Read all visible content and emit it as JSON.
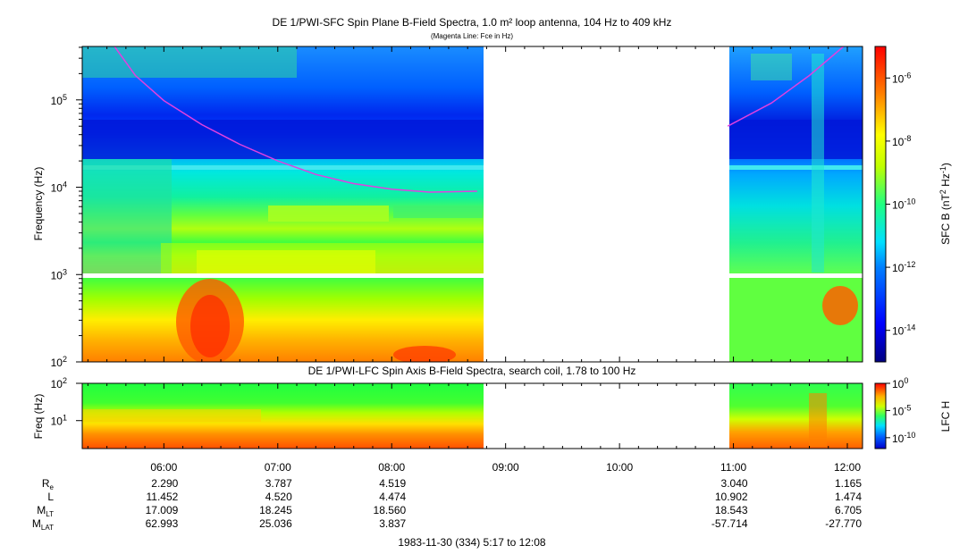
{
  "chart_data": [
    {
      "type": "heatmap",
      "title": "DE 1/PWI-SFC  Spin Plane B-Field Spectra, 1.0 m² loop antenna, 104 Hz to 409 kHz",
      "subtitle": "(Magenta Line: Fce in Hz)",
      "ylabel": "Frequency (Hz)",
      "yscale": "log",
      "ylim": [
        100,
        409000
      ],
      "yticks": [
        {
          "value": 100,
          "label": "10",
          "exp": "2"
        },
        {
          "value": 1000,
          "label": "10",
          "exp": "3"
        },
        {
          "value": 10000,
          "label": "10",
          "exp": "4"
        },
        {
          "value": 100000,
          "label": "10",
          "exp": "5"
        }
      ],
      "colorbar": {
        "label_pre": "SFC B (nT",
        "label_sup1": "2",
        "label_mid": " Hz",
        "label_sup2": "-1",
        "label_post": ")",
        "scale": "log",
        "range": [
          1e-15,
          1e-05
        ],
        "ticks": [
          {
            "value": 1e-06,
            "label": "10",
            "exp": "-6"
          },
          {
            "value": 1e-08,
            "label": "10",
            "exp": "-8"
          },
          {
            "value": 1e-10,
            "label": "10",
            "exp": "-10"
          },
          {
            "value": 1e-12,
            "label": "10",
            "exp": "-12"
          },
          {
            "value": 1e-14,
            "label": "10",
            "exp": "-14"
          }
        ]
      },
      "data_gaps_utc": [
        [
          "08:48",
          "10:55"
        ]
      ],
      "fce_line": {
        "name": "Fce",
        "color": "#e040e0",
        "points_hz": [
          {
            "t": "05:34",
            "f": 409000
          },
          {
            "t": "05:45",
            "f": 190000
          },
          {
            "t": "06:00",
            "f": 98000
          },
          {
            "t": "06:20",
            "f": 52000
          },
          {
            "t": "06:40",
            "f": 31000
          },
          {
            "t": "07:00",
            "f": 20000
          },
          {
            "t": "07:20",
            "f": 14000
          },
          {
            "t": "07:40",
            "f": 11000
          },
          {
            "t": "08:00",
            "f": 9500
          },
          {
            "t": "08:20",
            "f": 8800
          },
          {
            "t": "08:45",
            "f": 9000
          },
          {
            "t": "10:57",
            "f": 50000
          },
          {
            "t": "11:20",
            "f": 92000
          },
          {
            "t": "11:40",
            "f": 190000
          },
          {
            "t": "11:58",
            "f": 409000
          }
        ]
      }
    },
    {
      "type": "heatmap",
      "title": "DE 1/PWI-LFC  Spin Axis B-Field Spectra, search coil, 1.78 to 100 Hz",
      "ylabel": "Freq (Hz)",
      "yscale": "log",
      "ylim": [
        1.78,
        100
      ],
      "yticks": [
        {
          "value": 10,
          "label": "10",
          "exp": "1"
        },
        {
          "value": 100,
          "label": "10",
          "exp": "2"
        }
      ],
      "colorbar": {
        "label": "LFC H",
        "scale": "log",
        "range": [
          1e-12,
          1
        ],
        "ticks": [
          {
            "value": 1,
            "label": "10",
            "exp": "0"
          },
          {
            "value": 1e-05,
            "label": "10",
            "exp": "-5"
          },
          {
            "value": 1e-10,
            "label": "10",
            "exp": "-10"
          }
        ]
      },
      "data_gaps_utc": [
        [
          "08:48",
          "10:55"
        ]
      ]
    }
  ],
  "time_axis": {
    "start_utc": "05:17",
    "end_utc": "12:08",
    "ticks": [
      "06:00",
      "07:00",
      "08:00",
      "09:00",
      "10:00",
      "11:00",
      "12:00"
    ],
    "date_label": "1983-11-30 (334) 5:17 to 12:08"
  },
  "ephemeris": {
    "rows": [
      {
        "label": "R",
        "sub": "e",
        "values": [
          "2.290",
          "3.787",
          "4.519",
          "",
          "",
          "3.040",
          "1.165"
        ]
      },
      {
        "label": "L",
        "sub": "",
        "values": [
          "11.452",
          "4.520",
          "4.474",
          "",
          "",
          "10.902",
          "1.474"
        ]
      },
      {
        "label": "M",
        "sub": "LT",
        "values": [
          "17.009",
          "18.245",
          "18.560",
          "",
          "",
          "18.543",
          "6.705"
        ]
      },
      {
        "label": "M",
        "sub": "LAT",
        "values": [
          "62.993",
          "25.036",
          "3.837",
          "",
          "",
          "-57.714",
          "-27.770"
        ]
      }
    ]
  }
}
